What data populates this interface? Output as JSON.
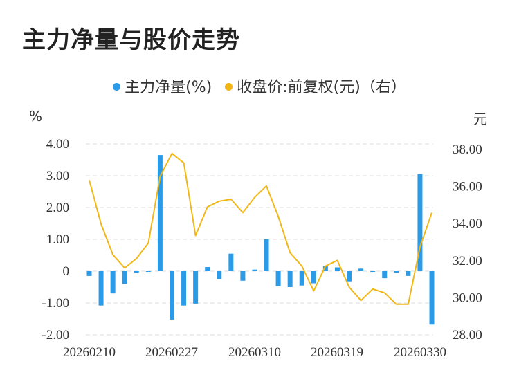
{
  "title": "主力净量与股价走势",
  "legend": {
    "main_label": "主力净量(%)",
    "price_label": "收盘价:前复权(元)（右）"
  },
  "units": {
    "left": "%",
    "right": "元"
  },
  "colors": {
    "bar": "#2b9be8",
    "line": "#f2b716",
    "grid": "#dddddd",
    "text": "#333333"
  },
  "chart_data": {
    "type": "bar+line",
    "x_tick_labels": [
      "20260210",
      "20260227",
      "20260310",
      "20260319",
      "20260330"
    ],
    "left_axis": {
      "ticks": [
        "4.00",
        "3.00",
        "2.00",
        "1.00",
        "0",
        "-1.00",
        "-2.00"
      ],
      "range": [
        -2,
        4
      ]
    },
    "right_axis": {
      "ticks": [
        "38.00",
        "36.00",
        "34.00",
        "32.00",
        "30.00",
        "28.00"
      ],
      "range": [
        28,
        38
      ]
    },
    "series": [
      {
        "name": "主力净量(%)",
        "type": "bar",
        "values": [
          -0.15,
          -1.08,
          -0.7,
          -0.4,
          -0.05,
          -0.02,
          3.65,
          -1.52,
          -1.08,
          -1.02,
          0.13,
          -0.25,
          0.55,
          -0.3,
          0.05,
          1.0,
          -0.47,
          -0.5,
          -0.45,
          -0.38,
          0.17,
          0.12,
          -0.32,
          0.08,
          -0.02,
          -0.22,
          -0.05,
          -0.15,
          3.05,
          -1.68
        ]
      },
      {
        "name": "收盘价:前复权(元)（右）",
        "type": "line",
        "values": [
          36.1,
          33.8,
          32.2,
          31.5,
          32.0,
          32.8,
          36.3,
          37.5,
          37.0,
          33.2,
          34.7,
          35.0,
          35.1,
          34.4,
          35.2,
          35.8,
          34.2,
          32.3,
          31.6,
          30.3,
          31.6,
          31.9,
          30.5,
          29.8,
          30.4,
          30.2,
          29.6,
          29.6,
          32.6,
          34.4
        ]
      }
    ]
  }
}
